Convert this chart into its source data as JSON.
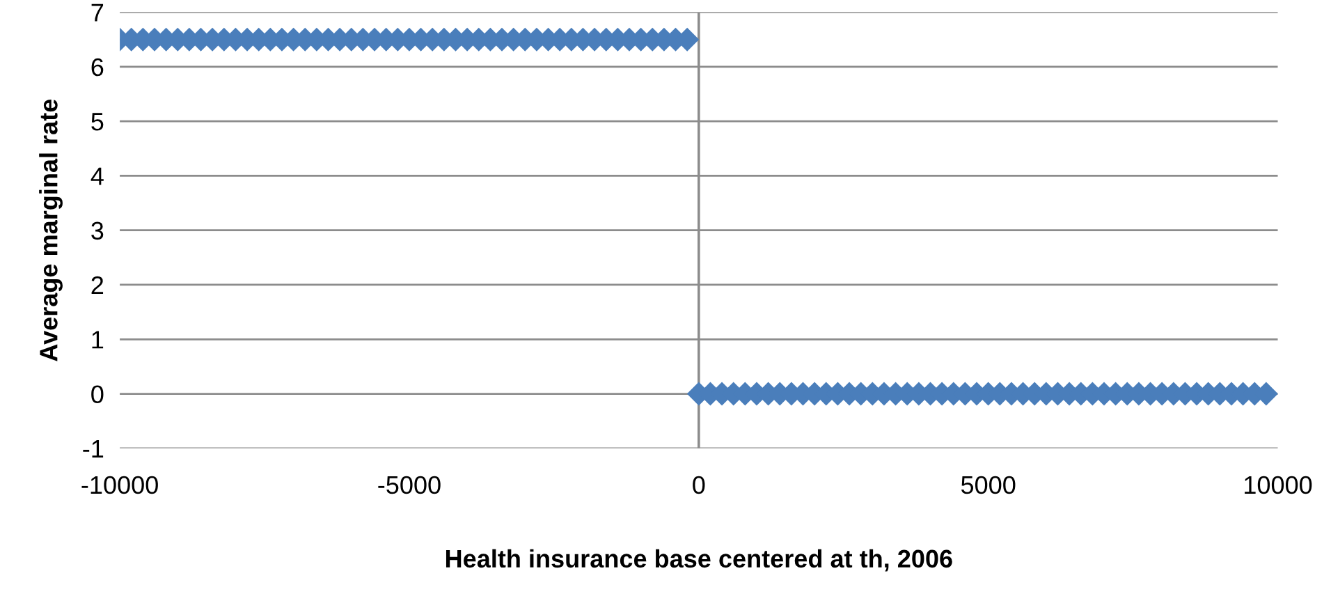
{
  "chart_data": {
    "type": "scatter",
    "xlabel": "Health insurance base centered at th, 2006",
    "ylabel": "Average marginal rate",
    "series": [
      {
        "color": "#4a7ebb",
        "x": [
          -10000,
          -9800,
          -9600,
          -9400,
          -9200,
          -9000,
          -8800,
          -8600,
          -8400,
          -8200,
          -8000,
          -7800,
          -7600,
          -7400,
          -7200,
          -7000,
          -6800,
          -6600,
          -6400,
          -6200,
          -6000,
          -5800,
          -5600,
          -5400,
          -5200,
          -5000,
          -4800,
          -4600,
          -4400,
          -4200,
          -4000,
          -3800,
          -3600,
          -3400,
          -3200,
          -3000,
          -2800,
          -2600,
          -2400,
          -2200,
          -2000,
          -1800,
          -1600,
          -1400,
          -1200,
          -1000,
          -800,
          -600,
          -400,
          -200
        ],
        "values": [
          6.5,
          6.5,
          6.5,
          6.5,
          6.5,
          6.5,
          6.5,
          6.5,
          6.5,
          6.5,
          6.5,
          6.5,
          6.5,
          6.5,
          6.5,
          6.5,
          6.5,
          6.5,
          6.5,
          6.5,
          6.5,
          6.5,
          6.5,
          6.5,
          6.5,
          6.5,
          6.5,
          6.5,
          6.5,
          6.5,
          6.5,
          6.5,
          6.5,
          6.5,
          6.5,
          6.5,
          6.5,
          6.5,
          6.5,
          6.5,
          6.5,
          6.5,
          6.5,
          6.5,
          6.5,
          6.5,
          6.5,
          6.5,
          6.5,
          6.5
        ]
      },
      {
        "color": "#4a7ebb",
        "x": [
          0,
          200,
          400,
          600,
          800,
          1000,
          1200,
          1400,
          1600,
          1800,
          2000,
          2200,
          2400,
          2600,
          2800,
          3000,
          3200,
          3400,
          3600,
          3800,
          4000,
          4200,
          4400,
          4600,
          4800,
          5000,
          5200,
          5400,
          5600,
          5800,
          6000,
          6200,
          6400,
          6600,
          6800,
          7000,
          7200,
          7400,
          7600,
          7800,
          8000,
          8200,
          8400,
          8600,
          8800,
          9000,
          9200,
          9400,
          9600,
          9800
        ],
        "values": [
          0,
          0,
          0,
          0,
          0,
          0,
          0,
          0,
          0,
          0,
          0,
          0,
          0,
          0,
          0,
          0,
          0,
          0,
          0,
          0,
          0,
          0,
          0,
          0,
          0,
          0,
          0,
          0,
          0,
          0,
          0,
          0,
          0,
          0,
          0,
          0,
          0,
          0,
          0,
          0,
          0,
          0,
          0,
          0,
          0,
          0,
          0,
          0,
          0,
          0
        ]
      }
    ],
    "xlim": [
      -10000,
      10000
    ],
    "xticks": [
      -10000,
      -5000,
      0,
      5000,
      10000
    ],
    "ylim": [
      -1,
      7
    ],
    "yticks": [
      -1,
      0,
      1,
      2,
      3,
      4,
      5,
      6,
      7
    ],
    "grid": "y",
    "marker": "diamond"
  }
}
